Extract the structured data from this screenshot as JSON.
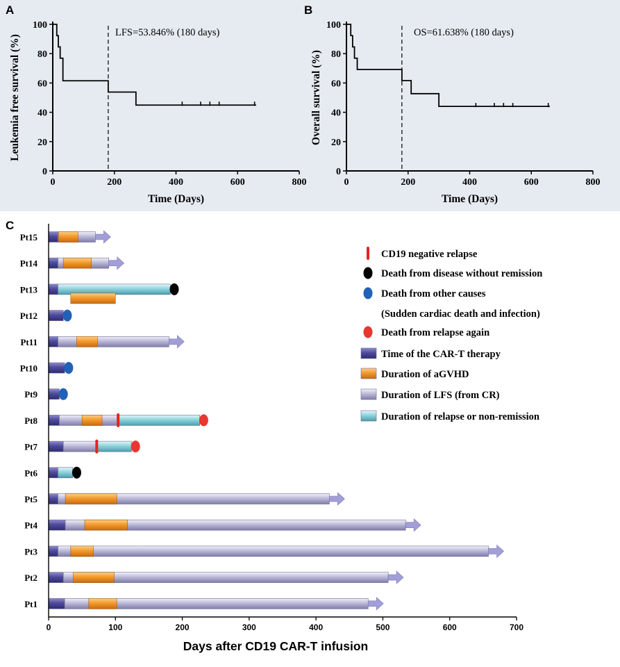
{
  "chart_data": [
    {
      "panel": "A",
      "type": "line",
      "subtype": "kaplan-meier",
      "title": "",
      "annotation": "LFS=53.846% (180 days)",
      "xlabel": "Time (Days)",
      "ylabel": "Leukemia free survival (%)",
      "xlim": [
        0,
        800
      ],
      "ylim": [
        0,
        100
      ],
      "xticks": [
        0,
        200,
        400,
        600,
        800
      ],
      "yticks": [
        0,
        20,
        40,
        60,
        80,
        100
      ],
      "xtick_labels": [
        "0",
        "200",
        "400",
        "600",
        "800"
      ],
      "ytick_labels": [
        "0",
        "20",
        "40",
        "60",
        "80",
        "100"
      ],
      "reference_line_x": 180,
      "steps": [
        [
          0,
          100
        ],
        [
          13,
          92.3
        ],
        [
          18,
          84.6
        ],
        [
          24,
          76.9
        ],
        [
          33,
          61.5
        ],
        [
          180,
          53.8
        ],
        [
          270,
          44.9
        ],
        [
          660,
          44.9
        ]
      ],
      "censored": [
        420,
        480,
        510,
        540,
        655
      ]
    },
    {
      "panel": "B",
      "type": "line",
      "subtype": "kaplan-meier",
      "title": "",
      "annotation": "OS=61.638% (180 days)",
      "xlabel": "Time (Days)",
      "ylabel": "Overall survival (%)",
      "xlim": [
        0,
        800
      ],
      "ylim": [
        0,
        100
      ],
      "xticks": [
        0,
        200,
        400,
        600,
        800
      ],
      "yticks": [
        0,
        20,
        40,
        60,
        80,
        100
      ],
      "xtick_labels": [
        "0",
        "200",
        "400",
        "600",
        "800"
      ],
      "ytick_labels": [
        "0",
        "20",
        "40",
        "60",
        "80",
        "100"
      ],
      "reference_line_x": 180,
      "steps": [
        [
          0,
          100
        ],
        [
          14,
          92.3
        ],
        [
          20,
          84.6
        ],
        [
          26,
          76.9
        ],
        [
          35,
          69.2
        ],
        [
          180,
          61.6
        ],
        [
          210,
          52.7
        ],
        [
          300,
          44.0
        ],
        [
          660,
          44.0
        ]
      ],
      "censored": [
        420,
        480,
        510,
        540,
        655
      ]
    },
    {
      "panel": "C",
      "type": "bar",
      "subtype": "swimmer-plot",
      "xlabel": "Days after CD19 CAR-T infusion",
      "xlim": [
        0,
        700
      ],
      "xticks": [
        0,
        100,
        200,
        300,
        400,
        500,
        600,
        700
      ],
      "xtick_labels": [
        "0",
        "100",
        "200",
        "300",
        "400",
        "500",
        "600",
        "700"
      ],
      "legend": [
        {
          "key": "cd19_neg_relapse",
          "label": "CD19 negative relapse",
          "color": "#e52420",
          "shape": "tick"
        },
        {
          "key": "death_no_remission",
          "label": "Death from disease without remission",
          "color": "#000000",
          "shape": "dot"
        },
        {
          "key": "death_other",
          "label": "Death from other causes",
          "label2": "(Sudden cardiac death and infection)",
          "color": "#2161b8",
          "shape": "dot"
        },
        {
          "key": "death_relapse",
          "label": "Death from relapse again",
          "color": "#e83630",
          "shape": "dot"
        },
        {
          "key": "cart",
          "label": "Time of the CAR-T therapy",
          "color": "#4e4b9c",
          "shape": "bar"
        },
        {
          "key": "agvhd",
          "label": "Duration of aGVHD",
          "color": "#f39a2c",
          "shape": "bar"
        },
        {
          "key": "lfs",
          "label": "Duration of LFS (from CR)",
          "color": "#bcbad8",
          "shape": "bar"
        },
        {
          "key": "relapse",
          "label": "Duration of relapse or non-remission",
          "color": "#8fd3dd",
          "shape": "bar"
        }
      ],
      "patients": [
        {
          "id": "Pt15",
          "segments": [
            {
              "type": "cart",
              "start": 0,
              "end": 14
            },
            {
              "type": "lfs",
              "start": 14,
              "end": 70
            }
          ],
          "agvhd": [
            [
              15,
              44
            ]
          ],
          "arrow": true
        },
        {
          "id": "Pt14",
          "segments": [
            {
              "type": "cart",
              "start": 0,
              "end": 14
            },
            {
              "type": "lfs",
              "start": 14,
              "end": 90
            }
          ],
          "agvhd": [
            [
              22,
              64
            ]
          ],
          "arrow": true
        },
        {
          "id": "Pt13",
          "segments": [
            {
              "type": "cart",
              "start": 0,
              "end": 14
            },
            {
              "type": "relapse",
              "start": 14,
              "end": 182
            }
          ],
          "agvhd_below": [
            [
              33,
              100
            ]
          ],
          "event": {
            "type": "death_no_remission",
            "day": 188
          }
        },
        {
          "id": "Pt12",
          "segments": [
            {
              "type": "cart",
              "start": 0,
              "end": 22
            }
          ],
          "event": {
            "type": "death_other",
            "day": 28
          }
        },
        {
          "id": "Pt11",
          "segments": [
            {
              "type": "cart",
              "start": 0,
              "end": 14
            },
            {
              "type": "lfs",
              "start": 14,
              "end": 180
            }
          ],
          "agvhd": [
            [
              42,
              73
            ]
          ],
          "arrow": true
        },
        {
          "id": "Pt10",
          "segments": [
            {
              "type": "cart",
              "start": 0,
              "end": 24
            }
          ],
          "event": {
            "type": "death_other",
            "day": 30
          }
        },
        {
          "id": "Pt9",
          "segments": [
            {
              "type": "cart",
              "start": 0,
              "end": 16
            }
          ],
          "event": {
            "type": "death_other",
            "day": 22
          }
        },
        {
          "id": "Pt8",
          "segments": [
            {
              "type": "cart",
              "start": 0,
              "end": 16
            },
            {
              "type": "lfs",
              "start": 16,
              "end": 104
            },
            {
              "type": "relapse",
              "start": 104,
              "end": 226
            }
          ],
          "agvhd": [
            [
              50,
              80
            ]
          ],
          "cd19_relapse": 104,
          "event": {
            "type": "death_relapse",
            "day": 232
          }
        },
        {
          "id": "Pt7",
          "segments": [
            {
              "type": "cart",
              "start": 0,
              "end": 22
            },
            {
              "type": "lfs",
              "start": 22,
              "end": 72
            },
            {
              "type": "relapse",
              "start": 72,
              "end": 124
            }
          ],
          "cd19_relapse": 72,
          "event": {
            "type": "death_relapse",
            "day": 130
          }
        },
        {
          "id": "Pt6",
          "segments": [
            {
              "type": "cart",
              "start": 0,
              "end": 14
            },
            {
              "type": "relapse",
              "start": 14,
              "end": 36
            }
          ],
          "event": {
            "type": "death_no_remission",
            "day": 42
          }
        },
        {
          "id": "Pt5",
          "segments": [
            {
              "type": "cart",
              "start": 0,
              "end": 14
            },
            {
              "type": "lfs",
              "start": 14,
              "end": 420
            }
          ],
          "agvhd": [
            [
              25,
              102
            ]
          ],
          "arrow": true
        },
        {
          "id": "Pt4",
          "segments": [
            {
              "type": "cart",
              "start": 0,
              "end": 25
            },
            {
              "type": "lfs",
              "start": 25,
              "end": 534
            }
          ],
          "agvhd": [
            [
              54,
              118
            ]
          ],
          "arrow": true
        },
        {
          "id": "Pt3",
          "segments": [
            {
              "type": "cart",
              "start": 0,
              "end": 14
            },
            {
              "type": "lfs",
              "start": 14,
              "end": 658
            }
          ],
          "agvhd": [
            [
              33,
              67
            ]
          ],
          "arrow": true
        },
        {
          "id": "Pt2",
          "segments": [
            {
              "type": "cart",
              "start": 0,
              "end": 22
            },
            {
              "type": "lfs",
              "start": 22,
              "end": 508
            }
          ],
          "agvhd": [
            [
              37,
              98
            ]
          ],
          "arrow": true
        },
        {
          "id": "Pt1",
          "segments": [
            {
              "type": "cart",
              "start": 0,
              "end": 24
            },
            {
              "type": "lfs",
              "start": 24,
              "end": 478
            }
          ],
          "agvhd": [
            [
              60,
              102
            ]
          ],
          "arrow": true
        }
      ]
    }
  ]
}
